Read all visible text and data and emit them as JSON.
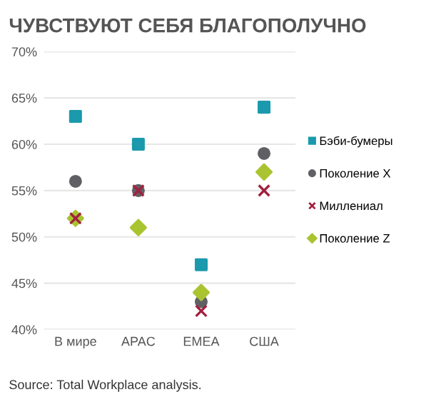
{
  "chart_data": {
    "type": "scatter",
    "title": "ЧУВСТВУЮТ СЕБЯ БЛАГОПОЛУЧНО",
    "categories": [
      "В мире",
      "APAC",
      "EMEA",
      "США"
    ],
    "series": [
      {
        "name": "Бэби-бумеры",
        "color": "#1a9aac",
        "marker": "square",
        "values": [
          63,
          60,
          47,
          64
        ]
      },
      {
        "name": "Поколение X",
        "color": "#606064",
        "marker": "circle",
        "values": [
          56,
          55,
          43,
          59
        ]
      },
      {
        "name": "Миллениал",
        "color": "#a3203f",
        "marker": "cross",
        "values": [
          52,
          55,
          42,
          55
        ]
      },
      {
        "name": "Поколение Z",
        "color": "#a9c431",
        "marker": "diamond",
        "values": [
          52,
          51,
          44,
          57
        ]
      }
    ],
    "ylim": [
      40,
      70
    ],
    "yticks": [
      {
        "value": 40,
        "label": "40%"
      },
      {
        "value": 45,
        "label": "45%"
      },
      {
        "value": 50,
        "label": "50%"
      },
      {
        "value": 55,
        "label": "55%"
      },
      {
        "value": 60,
        "label": "60%"
      },
      {
        "value": 65,
        "label": "65%"
      },
      {
        "value": 70,
        "label": "70%"
      }
    ],
    "grid": "y",
    "legend": "right",
    "annotations": [
      "Source: Total Workplace analysis."
    ]
  }
}
